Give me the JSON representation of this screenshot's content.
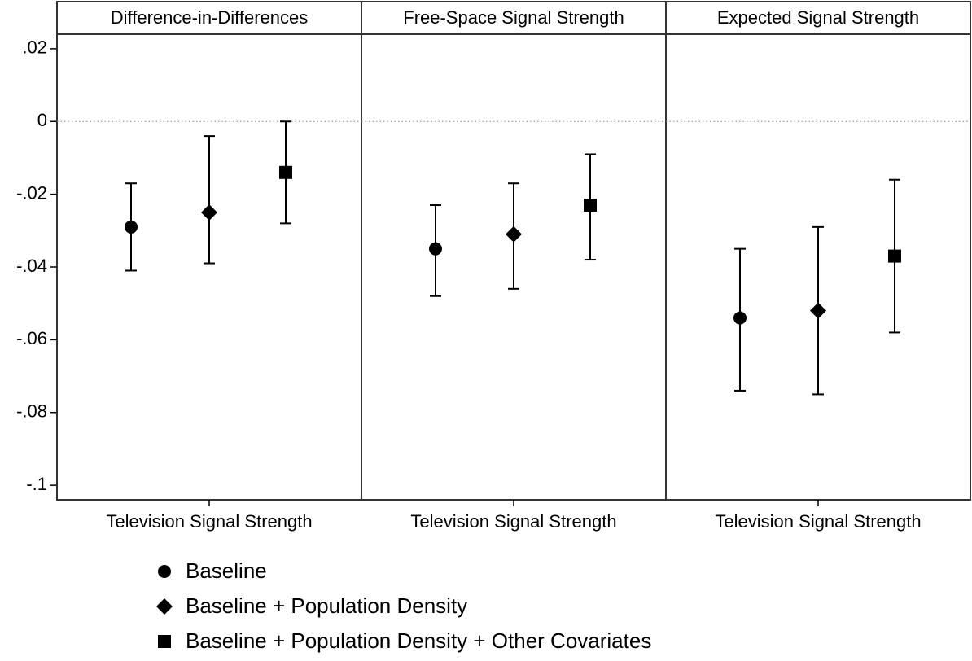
{
  "chart_data": {
    "type": "coefplot",
    "ylim": [
      -0.104,
      0.024
    ],
    "yticks": [
      {
        "value": 0.02,
        "label": ".02"
      },
      0,
      {
        "value": -0.02,
        "label": "-.02"
      },
      {
        "value": -0.04,
        "label": "-.04"
      },
      {
        "value": -0.06,
        "label": "-.06"
      },
      {
        "value": -0.08,
        "label": "-.08"
      },
      {
        "value": -0.1,
        "label": "-.1"
      }
    ],
    "refline": 0,
    "panels": [
      {
        "title": "Difference-in-Differences",
        "category": "Television Signal Strength"
      },
      {
        "title": "Free-Space Signal Strength",
        "category": "Television Signal Strength"
      },
      {
        "title": "Expected Signal Strength",
        "category": "Television Signal Strength"
      }
    ],
    "series": [
      {
        "name": "Baseline",
        "marker": "circle",
        "color": "#000000",
        "values": [
          -0.029,
          -0.035,
          -0.054
        ],
        "lower": [
          -0.041,
          -0.048,
          -0.074
        ],
        "upper": [
          -0.017,
          -0.023,
          -0.035
        ]
      },
      {
        "name": "Baseline + Population Density",
        "marker": "diamond",
        "color": "#000000",
        "values": [
          -0.025,
          -0.031,
          -0.052
        ],
        "lower": [
          -0.039,
          -0.046,
          -0.075
        ],
        "upper": [
          -0.004,
          -0.017,
          -0.029
        ]
      },
      {
        "name": "Baseline + Population Density + Other Covariates",
        "marker": "square",
        "color": "#000000",
        "values": [
          -0.014,
          -0.023,
          -0.037
        ],
        "lower": [
          -0.028,
          -0.038,
          -0.058
        ],
        "upper": [
          0.0,
          -0.009,
          -0.016
        ]
      }
    ]
  }
}
